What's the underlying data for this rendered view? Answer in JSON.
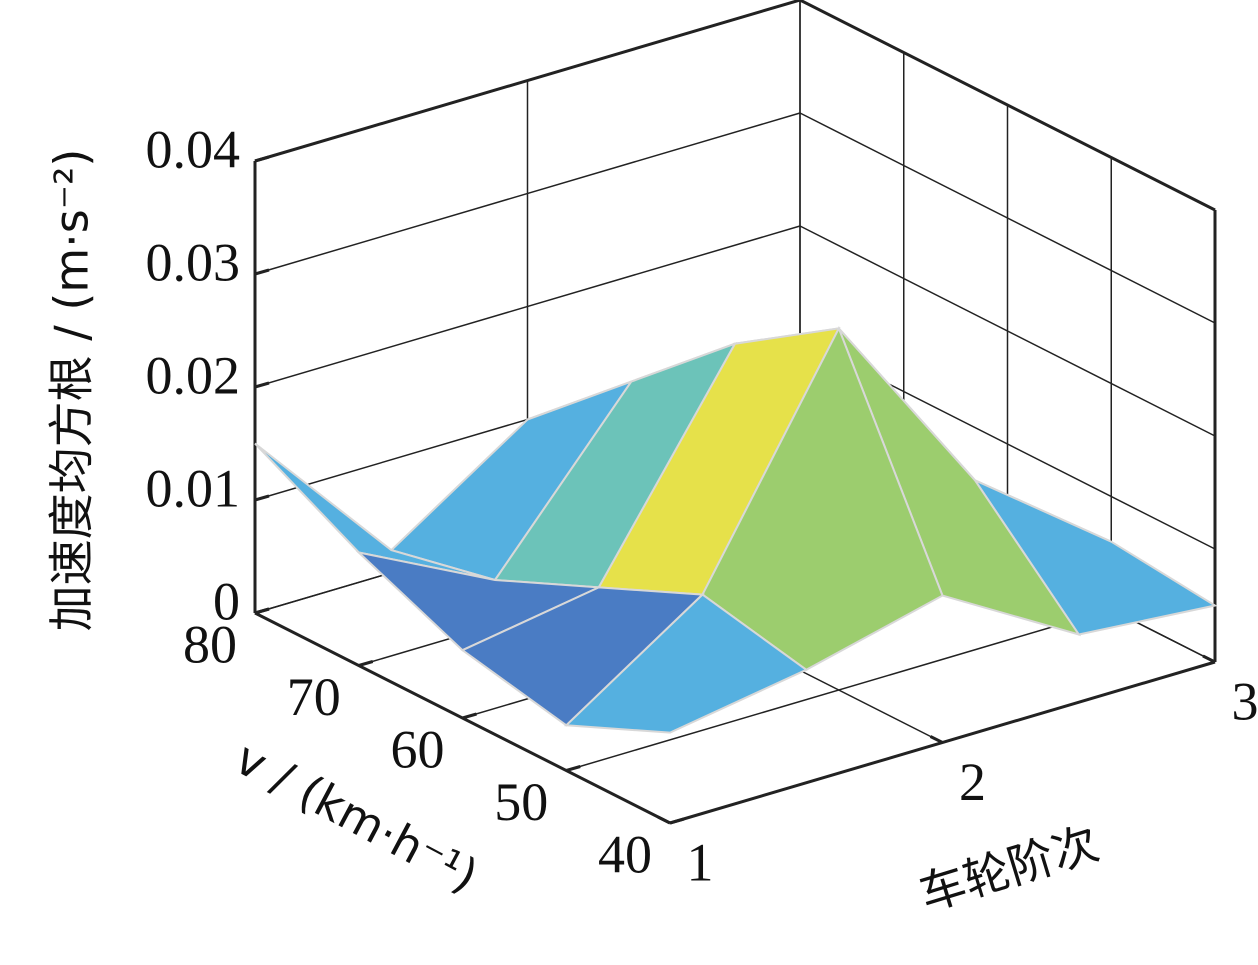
{
  "chart_data": {
    "type": "surface",
    "z_label": "加速度均方根 / (m·s⁻²)",
    "y_label": "v / (km·h⁻¹)",
    "x_label": "车轮阶次",
    "x": [
      1,
      1.5,
      2,
      2.5,
      3
    ],
    "y": [
      40,
      50,
      60,
      70,
      80
    ],
    "z": [
      [
        0.008,
        0.01,
        0.013,
        0.006,
        0.005
      ],
      [
        0.004,
        0.012,
        0.032,
        0.015,
        0.006
      ],
      [
        0.006,
        0.008,
        0.026,
        0.012,
        0.005
      ],
      [
        0.01,
        0.004,
        0.018,
        0.008,
        0.004
      ],
      [
        0.015,
        0.002,
        0.01,
        0.005,
        0.003
      ]
    ],
    "xlim": [
      1,
      3
    ],
    "ylim": [
      40,
      80
    ],
    "zlim": [
      0,
      0.04
    ],
    "xticks": [
      1,
      2,
      3
    ],
    "yticks": [
      40,
      50,
      60,
      70,
      80
    ],
    "zticks": [
      0,
      0.01,
      0.02,
      0.03,
      0.04
    ],
    "grid": true,
    "colormap": [
      "#3f4fa0",
      "#4a7cc4",
      "#55b0e0",
      "#6cc3b9",
      "#9ccd6e",
      "#e6e14a",
      "#f6a53a",
      "#e9462b",
      "#8c2320"
    ]
  }
}
